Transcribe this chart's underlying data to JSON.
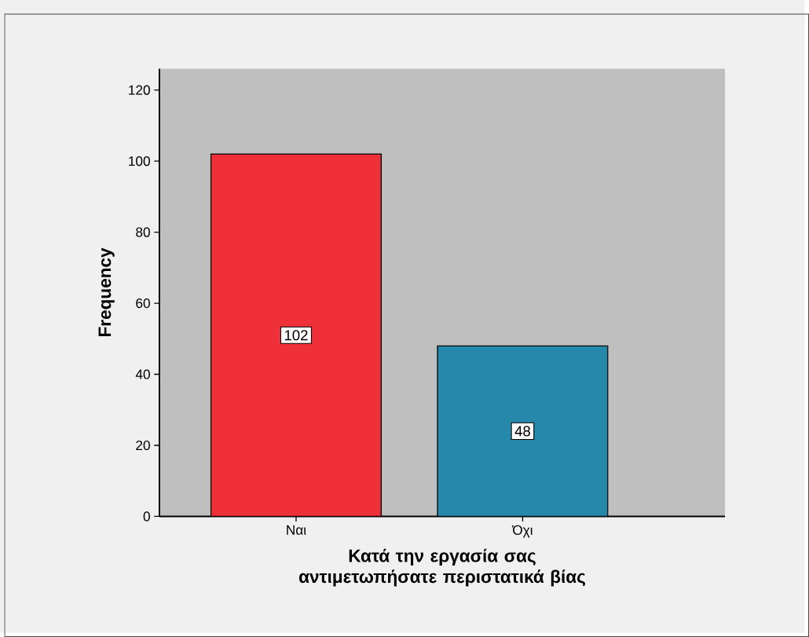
{
  "chart_data": {
    "type": "bar",
    "xlabel": "Κατά την εργασία σας αντιμετωπήσατε περιστατικά βίας",
    "ylabel": "Frequency",
    "categories": [
      "Ναι",
      "Όχι"
    ],
    "values": [
      102,
      48
    ],
    "colors": [
      "#ef3038",
      "#2688ab"
    ],
    "ylim": [
      0,
      126
    ],
    "yticks": [
      0,
      20,
      40,
      60,
      80,
      100,
      120
    ],
    "data_labels": true
  }
}
